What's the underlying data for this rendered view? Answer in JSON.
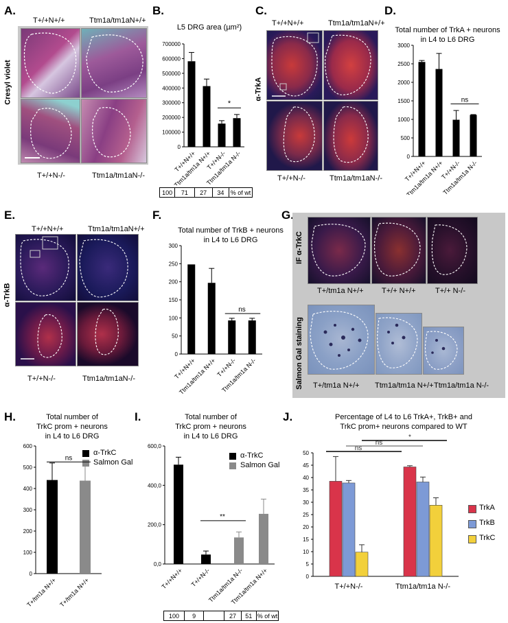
{
  "panels": {
    "A": {
      "label": "A.",
      "stain": "Cresyl violet",
      "top_left": "T+/+N+/+",
      "top_right": "Ttm1a/tm1aN+/+",
      "bottom_left": "T+/+N-/-",
      "bottom_right": "Ttm1a/tm1aN-/-"
    },
    "B": {
      "label": "B.",
      "title": "L5 DRG area (µm²)",
      "sig": "*",
      "pct": [
        "100",
        "71",
        "27",
        "34",
        "% of wt"
      ]
    },
    "C": {
      "label": "C.",
      "stain": "α-TrkA",
      "top_left": "T+/+N+/+",
      "top_right": "Ttm1a/tm1aN+/+",
      "bottom_left": "T+/+N-/-",
      "bottom_right": "Ttm1a/tm1aN-/-"
    },
    "D": {
      "label": "D.",
      "title1": "Total number of TrkA + neurons",
      "title2": "in L4 to L6 DRG",
      "sig": "ns"
    },
    "E": {
      "label": "E.",
      "stain": "α-TrkB",
      "top_left": "T+/+N+/+",
      "top_right": "Ttm1a/tm1aN+/+",
      "bottom_left": "T+/+N-/-",
      "bottom_right": "Ttm1a/tm1aN-/-"
    },
    "F": {
      "label": "F.",
      "title1": "Total number of TrkB + neurons",
      "title2": "in L4 to L6 DRG",
      "sig": "ns"
    },
    "G": {
      "label": "G.",
      "stain_top": "IF α-TrkC",
      "stain_bottom": "Salmon Gal staining",
      "top_labels": [
        "T+/tm1a N+/+",
        "T+/+ N+/+",
        "T+/+ N-/-"
      ],
      "bottom_labels": [
        "T+/tm1a N+/+",
        "Ttm1a/tm1a N+/+",
        "Ttm1a/tm1a N-/-"
      ]
    },
    "H": {
      "label": "H.",
      "title1": "Total number of",
      "title2": "TrkC prom + neurons",
      "title3": "in L4 to L6 DRG",
      "legend": [
        "α-TrkC",
        "Salmon Gal"
      ],
      "sig": "ns"
    },
    "I": {
      "label": "I.",
      "title1": "Total number of",
      "title2": "TrkC prom + neurons",
      "title3": "in L4 to L6 DRG",
      "legend": [
        "α-TrkC",
        "Salmon Gal"
      ],
      "sig": "**",
      "pct": [
        "100",
        "9",
        "",
        "27",
        "51",
        "% of wt"
      ]
    },
    "J": {
      "label": "J.",
      "title1": "Percentage of L4 to L6 TrkA+, TrkB+ and",
      "title2": "TrkC prom+ neurons compared to WT",
      "sig": [
        "ns",
        "ns",
        "*"
      ],
      "legend": [
        "TrkA",
        "TrkB",
        "TrkC"
      ]
    }
  },
  "colors": {
    "trka": "#d9344a",
    "trkb": "#7d9ad6",
    "trkc": "#f2d03b",
    "gray_bar": "#8a8a8a"
  },
  "chart_data": [
    {
      "panel": "B",
      "type": "bar",
      "title": "L5 DRG area (µm²)",
      "categories": [
        "T+/+N+/+",
        "Ttm1a/tm1a N+/+",
        "T+/+N-/-",
        "Ttm1a/tm1a N-/-"
      ],
      "values": [
        582000,
        413000,
        158000,
        195000
      ],
      "errors": [
        60000,
        48000,
        20000,
        25000
      ],
      "ylim": [
        0,
        700000
      ],
      "yticks": [
        "0",
        "100000",
        "200000",
        "300000",
        "400000",
        "500000",
        "600000",
        "700000"
      ]
    },
    {
      "panel": "D",
      "type": "bar",
      "title": "Total number of TrkA + neurons in L4 to L6 DRG",
      "categories": [
        "T+/+N+/+",
        "Ttm1a/tm1a N+/+",
        "T+/+N-/-",
        "Ttm1a/tm1a N-/-"
      ],
      "values": [
        2550,
        2360,
        990,
        1120
      ],
      "errors": [
        40,
        420,
        250,
        10
      ],
      "ylim": [
        0,
        3000
      ],
      "yticks": [
        "0",
        "500",
        "1000",
        "1500",
        "2000",
        "2500",
        "3000"
      ]
    },
    {
      "panel": "F",
      "type": "bar",
      "title": "Total number of TrkB + neurons in L4 to L6 DRG",
      "categories": [
        "T+/+N+/+",
        "Ttm1a/tm1a N+/+",
        "T+/+N-/-",
        "Ttm1a/tm1a N-/-"
      ],
      "values": [
        248,
        197,
        93,
        93
      ],
      "errors": [
        0,
        40,
        6,
        6
      ],
      "ylim": [
        0,
        300
      ],
      "yticks": [
        "0",
        "50",
        "100",
        "150",
        "200",
        "250",
        "300"
      ]
    },
    {
      "panel": "H",
      "type": "bar",
      "title": "Total number of TrkC prom + neurons in L4 to L6 DRG",
      "categories": [
        "T+/tm1a N+/+",
        "T+/tm1a N+/+"
      ],
      "values": [
        440,
        437
      ],
      "errors": [
        80,
        75
      ],
      "series_colors": [
        "#000000",
        "#8a8a8a"
      ],
      "ylim": [
        0,
        600
      ],
      "yticks": [
        "0",
        "100",
        "200",
        "300",
        "400",
        "500",
        "600"
      ]
    },
    {
      "panel": "I",
      "type": "bar",
      "title": "Total number of TrkC prom + neurons in L4 to L6 DRG",
      "categories": [
        "T+/+N+/+",
        "T+/+N-/-",
        "Ttm1a/tm1a N-/-",
        "Ttm1a/tm1a N+/+"
      ],
      "values": [
        505,
        48,
        135,
        255
      ],
      "errors": [
        38,
        18,
        28,
        75
      ],
      "series_colors": [
        "#000000",
        "#000000",
        "#8a8a8a",
        "#8a8a8a"
      ],
      "ylim": [
        0,
        600
      ],
      "yticks": [
        "0,0",
        "200,0",
        "400,0",
        "600,0"
      ]
    },
    {
      "panel": "J",
      "type": "bar",
      "title": "Percentage of L4 to L6 TrkA+, TrkB+ and TrkC prom+ neurons compared to WT",
      "categories": [
        "T+/+N-/-",
        "Ttm1a/tm1a N-/-"
      ],
      "series": [
        {
          "name": "TrkA",
          "values": [
            38.5,
            44.3
          ],
          "errors": [
            10,
            0.5
          ]
        },
        {
          "name": "TrkB",
          "values": [
            37.8,
            38.2
          ],
          "errors": [
            1,
            2
          ]
        },
        {
          "name": "TrkC",
          "values": [
            9.8,
            28.8
          ],
          "errors": [
            3,
            3
          ]
        }
      ],
      "ylim": [
        0,
        50
      ],
      "yticks": [
        "0",
        "5",
        "10",
        "15",
        "20",
        "25",
        "30",
        "35",
        "40",
        "45",
        "50"
      ]
    }
  ]
}
